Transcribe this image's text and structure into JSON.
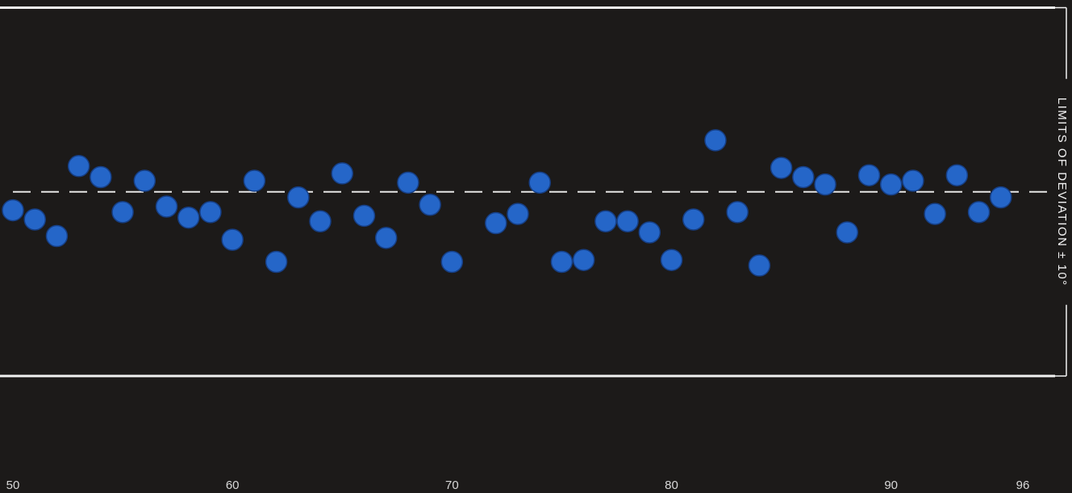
{
  "chart_data": {
    "type": "scatter",
    "title": "",
    "xlabel": "",
    "ylabel": "",
    "xlim": [
      50,
      96
    ],
    "ylim": [
      -10,
      10
    ],
    "x_ticks": [
      50,
      60,
      70,
      80,
      90,
      96
    ],
    "x_tick_labels": [
      "50",
      "60",
      "70",
      "80",
      "90",
      "96"
    ],
    "grid": false,
    "legend": "none",
    "reference_line": {
      "y": 0,
      "style": "dashed"
    },
    "limit_lines": [
      10,
      -10
    ],
    "limit_label": "LIMITS OF DEVIATION ± 10°",
    "series": [
      {
        "color": "#2566c8",
        "x": [
          50,
          51,
          52,
          53,
          54,
          55,
          56,
          57,
          58,
          59,
          60,
          61,
          62,
          63,
          64,
          65,
          66,
          67,
          68,
          69,
          70,
          72,
          73,
          74,
          75,
          76,
          77,
          78,
          79,
          80,
          81,
          82,
          83,
          84,
          85,
          86,
          87,
          88,
          89,
          90,
          91,
          92,
          93,
          94,
          95
        ],
        "y": [
          -1.0,
          -1.5,
          -2.4,
          1.4,
          0.8,
          -1.1,
          0.6,
          -0.8,
          -1.4,
          -1.1,
          -2.6,
          0.6,
          -3.8,
          -0.3,
          -1.6,
          1.0,
          -1.3,
          -2.5,
          0.5,
          -0.7,
          -3.8,
          -1.7,
          -1.2,
          0.5,
          -3.8,
          -3.7,
          -1.6,
          -1.6,
          -2.2,
          -3.7,
          -1.5,
          2.8,
          -1.1,
          -4.0,
          1.3,
          0.8,
          0.4,
          -2.2,
          0.9,
          0.4,
          0.6,
          -1.2,
          0.9,
          -1.1,
          -0.3
        ]
      }
    ]
  }
}
